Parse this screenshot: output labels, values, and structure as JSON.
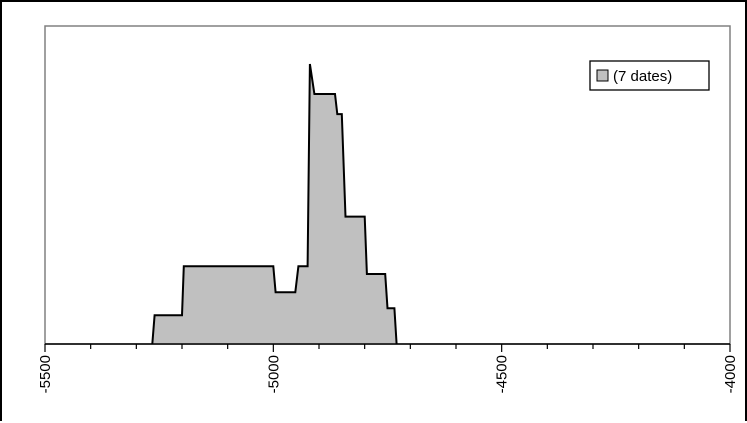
{
  "chart_data": {
    "type": "area",
    "title": "",
    "xlabel": "",
    "ylabel": "",
    "xlim": [
      -5500,
      -4000
    ],
    "ylim": [
      0,
      1.0
    ],
    "x_ticks": [
      -5500,
      -5000,
      -4500,
      -4000
    ],
    "x_tick_labels": [
      "-5500",
      "-5000",
      "-4500",
      "-4000"
    ],
    "y_ticks_visible": false,
    "grid": false,
    "legend": {
      "position": "top-right",
      "entries": [
        "(7  dates)"
      ]
    },
    "colors": {
      "area_fill": "#c0c0c0",
      "line": "#000000",
      "plot_border": "#808080"
    },
    "series": [
      {
        "name": "(7  dates)",
        "points": [
          [
            -5265,
            0.0
          ],
          [
            -5260,
            0.103
          ],
          [
            -5200,
            0.103
          ],
          [
            -5196,
            0.278
          ],
          [
            -5060,
            0.278
          ],
          [
            -5000,
            0.278
          ],
          [
            -4995,
            0.185
          ],
          [
            -4952,
            0.185
          ],
          [
            -4945,
            0.278
          ],
          [
            -4925,
            0.278
          ],
          [
            -4920,
            1.0
          ],
          [
            -4910,
            0.893
          ],
          [
            -4865,
            0.893
          ],
          [
            -4860,
            0.821
          ],
          [
            -4850,
            0.821
          ],
          [
            -4842,
            0.455
          ],
          [
            -4800,
            0.455
          ],
          [
            -4795,
            0.25
          ],
          [
            -4755,
            0.25
          ],
          [
            -4750,
            0.128
          ],
          [
            -4735,
            0.128
          ],
          [
            -4730,
            0.0
          ]
        ]
      }
    ]
  }
}
